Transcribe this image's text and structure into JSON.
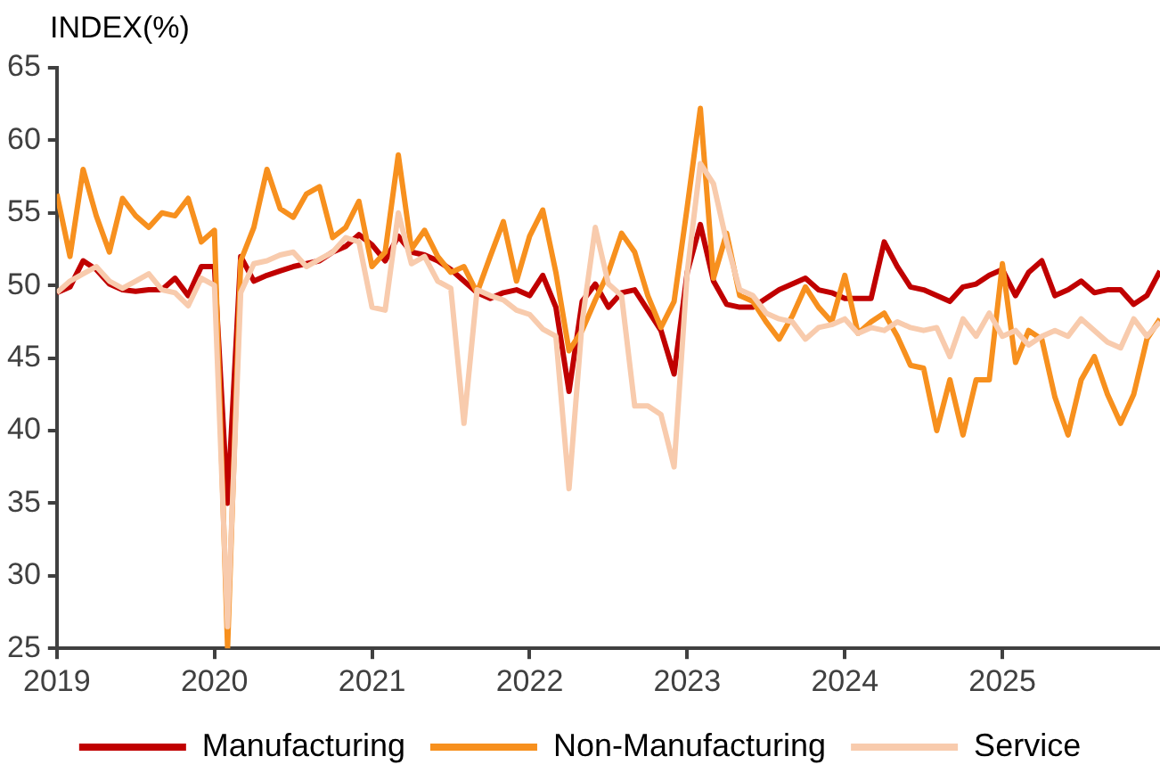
{
  "chart_data": {
    "type": "line",
    "ylabel": "INDEX(%)",
    "x": [
      "2019-01",
      "2019-02",
      "2019-03",
      "2019-04",
      "2019-05",
      "2019-06",
      "2019-07",
      "2019-08",
      "2019-09",
      "2019-10",
      "2019-11",
      "2019-12",
      "2020-01",
      "2020-02",
      "2020-03",
      "2020-04",
      "2020-05",
      "2020-06",
      "2020-07",
      "2020-08",
      "2020-09",
      "2020-10",
      "2020-11",
      "2020-12",
      "2021-01",
      "2021-02",
      "2021-03",
      "2021-04",
      "2021-05",
      "2021-06",
      "2021-07",
      "2021-08",
      "2021-09",
      "2021-10",
      "2021-11",
      "2021-12",
      "2022-01",
      "2022-02",
      "2022-03",
      "2022-04",
      "2022-05",
      "2022-06",
      "2022-07",
      "2022-08",
      "2022-09",
      "2022-10",
      "2022-11",
      "2022-12",
      "2023-01",
      "2023-02",
      "2023-03",
      "2023-04",
      "2023-05",
      "2023-06",
      "2023-07",
      "2023-08",
      "2023-09",
      "2023-10",
      "2023-11",
      "2023-12",
      "2024-01",
      "2024-02",
      "2024-03",
      "2024-04",
      "2024-05",
      "2024-06",
      "2024-07",
      "2024-08",
      "2024-09",
      "2024-10",
      "2024-11",
      "2024-12",
      "2025-01",
      "2025-02",
      "2025-03",
      "2025-04",
      "2025-05",
      "2025-06",
      "2025-07",
      "2025-08",
      "2025-09",
      "2025-10",
      "2025-11",
      "2025-12",
      "2026-01"
    ],
    "series": [
      {
        "name": "Manufacturing",
        "color": "#c00000",
        "values": [
          49.5,
          49.9,
          51.7,
          51.1,
          50.1,
          49.7,
          49.6,
          49.7,
          49.7,
          50.5,
          49.3,
          51.3,
          51.3,
          35.0,
          52.0,
          50.3,
          50.7,
          51.0,
          51.3,
          51.5,
          51.7,
          52.3,
          52.7,
          53.5,
          52.8,
          51.7,
          53.4,
          52.3,
          52.1,
          51.7,
          51.1,
          50.3,
          49.5,
          49.1,
          49.5,
          49.7,
          49.3,
          50.7,
          48.5,
          42.7,
          48.9,
          50.1,
          48.5,
          49.5,
          49.7,
          48.3,
          46.9,
          43.9,
          50.9,
          54.2,
          50.3,
          48.7,
          48.5,
          48.5,
          49.1,
          49.7,
          50.1,
          50.5,
          49.7,
          49.5,
          49.1,
          49.1,
          49.1,
          53.0,
          51.3,
          49.9,
          49.7,
          49.3,
          48.9,
          49.9,
          50.1,
          50.7,
          51.1,
          49.3,
          50.9,
          51.7,
          49.3,
          49.7,
          50.3,
          49.5,
          49.7,
          49.7,
          48.7,
          49.3,
          51.0
        ]
      },
      {
        "name": "Non-Manufacturing",
        "color": "#f7901e",
        "values": [
          56.3,
          52.0,
          58.0,
          54.8,
          52.3,
          56.0,
          54.8,
          54.0,
          55.0,
          54.8,
          56.0,
          53.0,
          53.8,
          25.0,
          51.7,
          54.0,
          58.0,
          55.3,
          54.7,
          56.3,
          56.8,
          53.3,
          54.0,
          55.8,
          51.3,
          52.3,
          59.0,
          52.5,
          53.8,
          52.0,
          50.9,
          51.3,
          49.5,
          52.0,
          54.4,
          50.3,
          53.4,
          55.2,
          50.9,
          45.5,
          46.9,
          49.0,
          50.9,
          53.6,
          52.3,
          49.3,
          47.1,
          48.9,
          55.4,
          62.2,
          50.5,
          53.6,
          49.3,
          48.9,
          47.5,
          46.3,
          47.9,
          49.9,
          48.5,
          47.5,
          50.7,
          46.7,
          47.5,
          48.1,
          46.5,
          44.5,
          44.3,
          40.0,
          43.5,
          39.7,
          43.5,
          43.5,
          51.5,
          44.7,
          46.9,
          46.3,
          42.3,
          39.7,
          43.5,
          45.1,
          42.5,
          40.5,
          42.5,
          46.3,
          47.7
        ]
      },
      {
        "name": "Service",
        "color": "#f8cbad",
        "values": [
          49.5,
          50.3,
          50.8,
          51.3,
          50.3,
          49.8,
          50.3,
          50.8,
          49.7,
          49.5,
          48.6,
          50.5,
          50.0,
          26.5,
          49.5,
          51.5,
          51.7,
          52.1,
          52.3,
          51.3,
          51.8,
          52.3,
          53.3,
          53.0,
          48.5,
          48.3,
          55.0,
          51.5,
          52.0,
          50.3,
          49.8,
          40.5,
          49.7,
          49.3,
          49.0,
          48.3,
          48.0,
          47.0,
          46.5,
          36.0,
          47.5,
          54.0,
          50.1,
          49.3,
          41.7,
          41.7,
          41.1,
          37.5,
          50.9,
          58.4,
          57.0,
          53.0,
          49.7,
          49.3,
          48.1,
          47.7,
          47.5,
          46.3,
          47.1,
          47.3,
          47.7,
          46.7,
          47.1,
          46.9,
          47.5,
          47.1,
          46.9,
          47.1,
          45.1,
          47.7,
          46.5,
          48.1,
          46.5,
          46.9,
          45.9,
          46.5,
          46.9,
          46.5,
          47.7,
          46.9,
          46.1,
          45.7,
          47.7,
          46.5,
          47.5
        ]
      }
    ],
    "xlim": [
      "2019-01",
      "2026-01"
    ],
    "xticks": [
      "2019",
      "2020",
      "2021",
      "2022",
      "2023",
      "2024",
      "2025"
    ],
    "ylim": [
      25,
      65
    ],
    "yticks": [
      25,
      30,
      35,
      40,
      45,
      50,
      55,
      60,
      65
    ],
    "grid": false,
    "legend": "bottom",
    "marker": "none",
    "line_style": "solid"
  }
}
